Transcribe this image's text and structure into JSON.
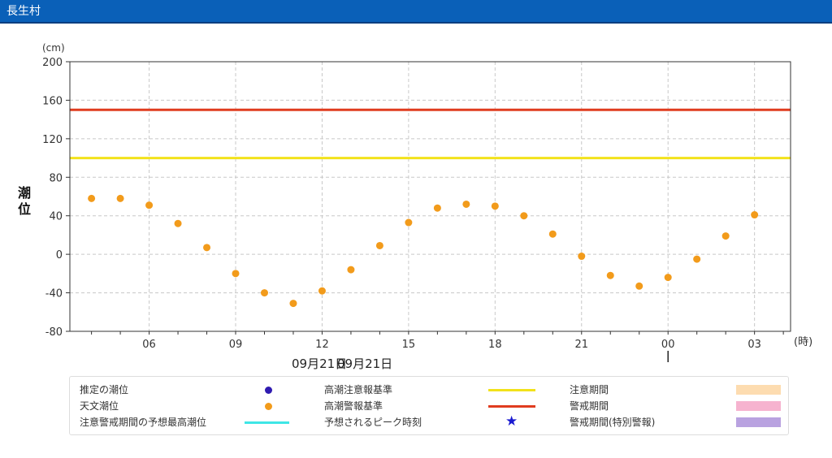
{
  "window": {
    "title": "長生村"
  },
  "colors": {
    "header_bg": "#0a60b8",
    "astro_tide": "#f29b1b",
    "estimated_tide": "#2f1bb0",
    "caution_line": "#f2e21b",
    "warning_line": "#e03c1f",
    "forecast_max": "#3fe6e6",
    "peak_star": "#1a1ad0",
    "caution_period": "#fddcb0",
    "warning_period": "#f6b3cf",
    "special_warning_period": "#b9a2e0"
  },
  "chart_data": {
    "type": "scatter",
    "ylabel": "潮位",
    "yunit": "(cm)",
    "xunit": "(時)",
    "ylim": [
      -80,
      200
    ],
    "yticks": [
      200,
      160,
      120,
      80,
      40,
      0,
      -40,
      -80
    ],
    "xlim_hours": [
      3.25,
      28.25
    ],
    "xticks": [
      {
        "hour": 6,
        "label": "06"
      },
      {
        "hour": 9,
        "label": "09"
      },
      {
        "hour": 12,
        "label": "12"
      },
      {
        "hour": 15,
        "label": "15"
      },
      {
        "hour": 18,
        "label": "18"
      },
      {
        "hour": 21,
        "label": "21"
      },
      {
        "hour": 24,
        "label": "00"
      },
      {
        "hour": 27,
        "label": "03"
      }
    ],
    "date_labels": [
      "09月21日",
      "09月21日"
    ],
    "grid": true,
    "reference_lines": [
      {
        "name": "高潮注意報基準",
        "y": 100
      },
      {
        "name": "高潮警報基準",
        "y": 150
      }
    ],
    "series": [
      {
        "name": "天文潮位",
        "x": [
          4,
          5,
          6,
          7,
          8,
          9,
          10,
          11,
          12,
          13,
          14,
          15,
          16,
          17,
          18,
          19,
          20,
          21,
          22,
          23,
          24,
          25,
          26,
          27
        ],
        "values": [
          58,
          58,
          51,
          32,
          7,
          -20,
          -40,
          -51,
          -38,
          -16,
          9,
          33,
          48,
          52,
          50,
          40,
          21,
          -2,
          -22,
          -33,
          -24,
          -5,
          19,
          41
        ]
      }
    ]
  },
  "legend": {
    "estimated_tide": "推定の潮位",
    "astro_tide": "天文潮位",
    "forecast_max": "注意警戒期間の予想最高潮位",
    "caution_std": "高潮注意報基準",
    "warning_std": "高潮警報基準",
    "peak_time": "予想されるピーク時刻",
    "caution_period": "注意期間",
    "warning_period": "警戒期間",
    "special_warning_period": "警戒期間(特別警報)"
  }
}
